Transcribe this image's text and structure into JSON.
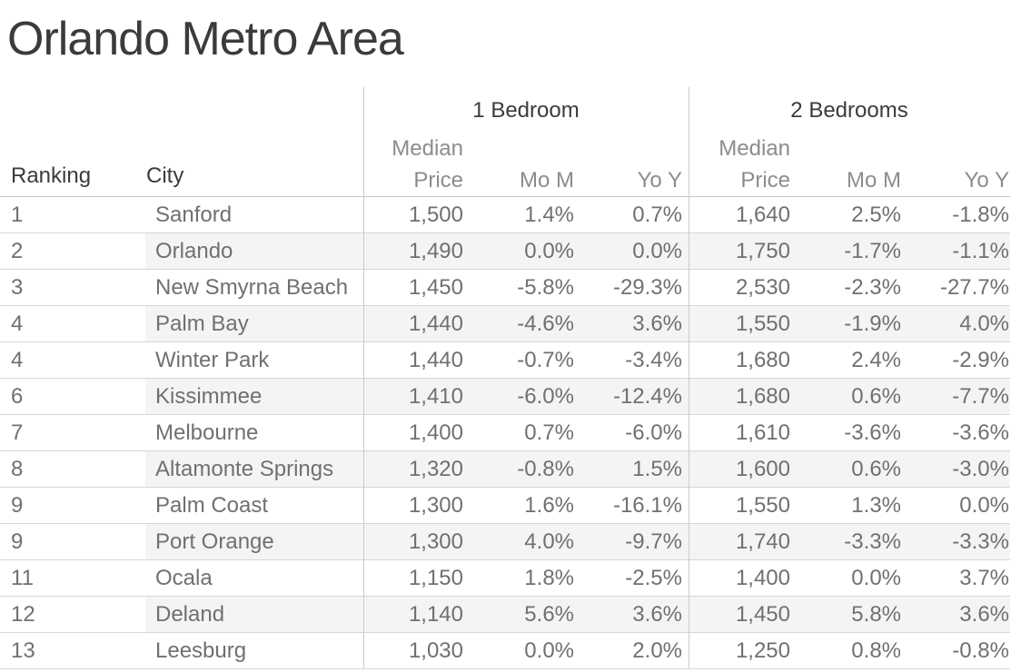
{
  "title": "Orlando Metro Area",
  "chart_data": {
    "type": "table",
    "title": "Orlando Metro Area",
    "col_headers": {
      "ranking": "Ranking",
      "city": "City"
    },
    "groups": [
      {
        "label": "1 Bedroom",
        "sub": [
          "Median Price",
          "Mo M",
          "Yo Y"
        ]
      },
      {
        "label": "2 Bedrooms",
        "sub": [
          "Median Price",
          "Mo M",
          "Yo Y"
        ]
      }
    ],
    "rows": [
      {
        "rank": "1",
        "city": "Sanford",
        "b1": {
          "price": "1,500",
          "mom": "1.4%",
          "yoy": "0.7%"
        },
        "b2": {
          "price": "1,640",
          "mom": "2.5%",
          "yoy": "-1.8%"
        }
      },
      {
        "rank": "2",
        "city": "Orlando",
        "b1": {
          "price": "1,490",
          "mom": "0.0%",
          "yoy": "0.0%"
        },
        "b2": {
          "price": "1,750",
          "mom": "-1.7%",
          "yoy": "-1.1%"
        }
      },
      {
        "rank": "3",
        "city": "New Smyrna Beach",
        "b1": {
          "price": "1,450",
          "mom": "-5.8%",
          "yoy": "-29.3%"
        },
        "b2": {
          "price": "2,530",
          "mom": "-2.3%",
          "yoy": "-27.7%"
        }
      },
      {
        "rank": "4",
        "city": "Palm Bay",
        "b1": {
          "price": "1,440",
          "mom": "-4.6%",
          "yoy": "3.6%"
        },
        "b2": {
          "price": "1,550",
          "mom": "-1.9%",
          "yoy": "4.0%"
        }
      },
      {
        "rank": "4",
        "city": "Winter Park",
        "b1": {
          "price": "1,440",
          "mom": "-0.7%",
          "yoy": "-3.4%"
        },
        "b2": {
          "price": "1,680",
          "mom": "2.4%",
          "yoy": "-2.9%"
        }
      },
      {
        "rank": "6",
        "city": "Kissimmee",
        "b1": {
          "price": "1,410",
          "mom": "-6.0%",
          "yoy": "-12.4%"
        },
        "b2": {
          "price": "1,680",
          "mom": "0.6%",
          "yoy": "-7.7%"
        }
      },
      {
        "rank": "7",
        "city": "Melbourne",
        "b1": {
          "price": "1,400",
          "mom": "0.7%",
          "yoy": "-6.0%"
        },
        "b2": {
          "price": "1,610",
          "mom": "-3.6%",
          "yoy": "-3.6%"
        }
      },
      {
        "rank": "8",
        "city": "Altamonte Springs",
        "b1": {
          "price": "1,320",
          "mom": "-0.8%",
          "yoy": "1.5%"
        },
        "b2": {
          "price": "1,600",
          "mom": "0.6%",
          "yoy": "-3.0%"
        }
      },
      {
        "rank": "9",
        "city": "Palm Coast",
        "b1": {
          "price": "1,300",
          "mom": "1.6%",
          "yoy": "-16.1%"
        },
        "b2": {
          "price": "1,550",
          "mom": "1.3%",
          "yoy": "0.0%"
        }
      },
      {
        "rank": "9",
        "city": "Port Orange",
        "b1": {
          "price": "1,300",
          "mom": "4.0%",
          "yoy": "-9.7%"
        },
        "b2": {
          "price": "1,740",
          "mom": "-3.3%",
          "yoy": "-3.3%"
        }
      },
      {
        "rank": "11",
        "city": "Ocala",
        "b1": {
          "price": "1,150",
          "mom": "1.8%",
          "yoy": "-2.5%"
        },
        "b2": {
          "price": "1,400",
          "mom": "0.0%",
          "yoy": "3.7%"
        }
      },
      {
        "rank": "12",
        "city": "Deland",
        "b1": {
          "price": "1,140",
          "mom": "5.6%",
          "yoy": "3.6%"
        },
        "b2": {
          "price": "1,450",
          "mom": "5.8%",
          "yoy": "3.6%"
        }
      },
      {
        "rank": "13",
        "city": "Leesburg",
        "b1": {
          "price": "1,030",
          "mom": "0.0%",
          "yoy": "2.0%"
        },
        "b2": {
          "price": "1,250",
          "mom": "0.8%",
          "yoy": "-0.8%"
        }
      }
    ],
    "layout_hints": {
      "row_banding": "alternate rows shaded from City column rightward",
      "grid": "horizontal row lines, two vertical group dividers"
    }
  },
  "colors": {
    "title_text": "#3b3b3b",
    "header_text": "#3b3b3b",
    "subheader_text": "#8c8c8c",
    "data_text": "#707070",
    "row_band": "#f4f4f4",
    "row_line": "#d6d6d6",
    "header_line": "#c3c3c3",
    "group_divider": "#cbcbcb"
  }
}
